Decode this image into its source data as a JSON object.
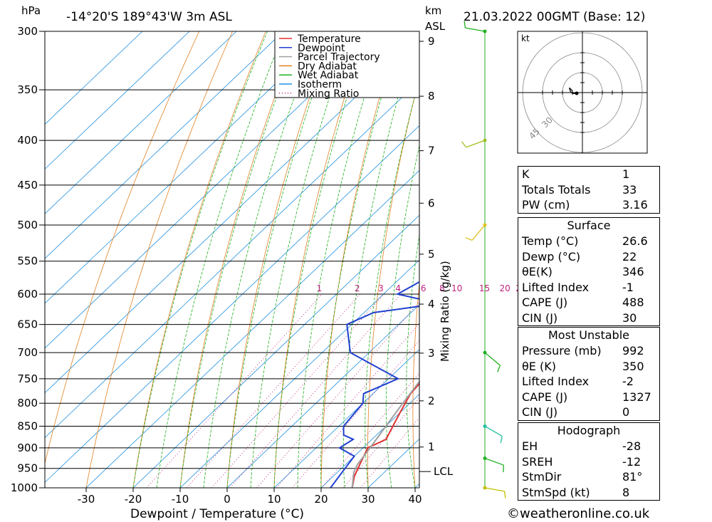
{
  "header": {
    "pressure_unit": "hPa",
    "location": "-14°20'S  189°43'W  3m  ASL",
    "km_unit": "km",
    "asl_unit": "ASL",
    "datetime": "21.03.2022  00GMT  (Base: 12)"
  },
  "axes": {
    "xlabel": "Dewpoint / Temperature (°C)",
    "mixing_label": "Mixing Ratio (g/kg)",
    "x_ticks": [
      "-30",
      "-20",
      "-10",
      "0",
      "10",
      "20",
      "30",
      "40"
    ],
    "pressure_ticks": [
      "300",
      "350",
      "400",
      "450",
      "500",
      "550",
      "600",
      "650",
      "700",
      "750",
      "800",
      "850",
      "900",
      "950",
      "1000"
    ],
    "km_ticks": [
      "9",
      "8",
      "7",
      "6",
      "5",
      "4",
      "3",
      "2",
      "1"
    ],
    "lcl_label": "LCL",
    "mixing_ticks": [
      "1",
      "2",
      "3",
      "4",
      "6",
      "8",
      "10",
      "15",
      "20",
      "25"
    ]
  },
  "legend": [
    {
      "label": "Temperature",
      "color": "#e03030"
    },
    {
      "label": "Dewpoint",
      "color": "#2040d0"
    },
    {
      "label": "Parcel Trajectory",
      "color": "#a0a0a0"
    },
    {
      "label": "Dry Adiabat",
      "color": "#e08020"
    },
    {
      "label": "Wet Adiabat",
      "color": "#20b020"
    },
    {
      "label": "Isotherm",
      "color": "#2090e0"
    },
    {
      "label": "Mixing Ratio",
      "color": "#c02080"
    }
  ],
  "chart_data": {
    "type": "line",
    "title": "",
    "xlabel": "Dewpoint / Temperature (°C)",
    "ylabel": "hPa",
    "xlim": [
      -40,
      40
    ],
    "ylim": [
      1000,
      300
    ],
    "series": [
      {
        "name": "Temperature",
        "points": [
          [
            1000,
            26.6
          ],
          [
            970,
            24.5
          ],
          [
            940,
            23
          ],
          [
            900,
            21
          ],
          [
            880,
            23
          ],
          [
            860,
            22
          ],
          [
            820,
            20
          ],
          [
            780,
            18
          ],
          [
            750,
            17.5
          ],
          [
            720,
            17.5
          ],
          [
            700,
            16.5
          ],
          [
            650,
            14
          ],
          [
            620,
            12.5
          ],
          [
            600,
            12
          ],
          [
            560,
            10.5
          ],
          [
            520,
            9.5
          ],
          [
            480,
            6
          ],
          [
            450,
            3
          ],
          [
            420,
            1
          ],
          [
            405,
            -1
          ],
          [
            390,
            -1.5
          ],
          [
            370,
            -2
          ]
        ]
      },
      {
        "name": "Dewpoint",
        "points": [
          [
            1000,
            22
          ],
          [
            960,
            21
          ],
          [
            920,
            20
          ],
          [
            900,
            15
          ],
          [
            880,
            16
          ],
          [
            870,
            13
          ],
          [
            850,
            11
          ],
          [
            800,
            10
          ],
          [
            780,
            8
          ],
          [
            750,
            12
          ],
          [
            700,
            -4
          ],
          [
            650,
            -11
          ],
          [
            630,
            -8
          ],
          [
            615,
            4
          ],
          [
            600,
            -7
          ],
          [
            580,
            -5
          ],
          [
            550,
            -6
          ],
          [
            530,
            -1
          ],
          [
            515,
            6
          ],
          [
            505,
            5
          ],
          [
            490,
            8
          ],
          [
            470,
            10
          ],
          [
            440,
            9
          ],
          [
            420,
            8
          ],
          [
            410,
            7
          ],
          [
            400,
            5
          ],
          [
            385,
            0
          ],
          [
            360,
            -5
          ],
          [
            345,
            -8
          ],
          [
            320,
            -7
          ],
          [
            300,
            0
          ]
        ]
      },
      {
        "name": "Parcel Trajectory",
        "points": [
          [
            1000,
            26.6
          ],
          [
            960,
            23.5
          ],
          [
            940,
            22.5
          ],
          [
            900,
            21.5
          ],
          [
            850,
            20
          ],
          [
            800,
            18.5
          ],
          [
            750,
            17
          ],
          [
            700,
            15
          ],
          [
            650,
            13
          ],
          [
            600,
            11
          ],
          [
            550,
            8.5
          ],
          [
            500,
            5.5
          ],
          [
            450,
            2
          ],
          [
            400,
            -2
          ],
          [
            370,
            -5
          ]
        ]
      }
    ]
  },
  "mixing_ratio_lines": [
    1,
    2,
    3,
    4,
    6,
    8,
    10,
    15,
    20,
    25
  ],
  "hodograph": {
    "unit": "kt",
    "rings": [
      "30",
      "45"
    ],
    "points": [
      [
        81,
        3
      ],
      [
        85,
        5
      ],
      [
        95,
        6
      ],
      [
        110,
        7
      ],
      [
        100,
        5
      ]
    ]
  },
  "wind_barbs": [
    {
      "pressure": 1000,
      "dir": 100,
      "speed": 10,
      "color": "#c0c000"
    },
    {
      "pressure": 925,
      "dir": 110,
      "speed": 10,
      "color": "#20b020"
    },
    {
      "pressure": 850,
      "dir": 120,
      "speed": 10,
      "color": "#20c0a0"
    },
    {
      "pressure": 700,
      "dir": 130,
      "speed": 10,
      "color": "#20b020"
    },
    {
      "pressure": 500,
      "dir": 220,
      "speed": 5,
      "color": "#e0c020"
    },
    {
      "pressure": 400,
      "dir": 250,
      "speed": 10,
      "color": "#a0c020"
    },
    {
      "pressure": 300,
      "dir": 280,
      "speed": 10,
      "color": "#20b020"
    }
  ],
  "indices": [
    {
      "label": "K",
      "value": "1"
    },
    {
      "label": "Totals Totals",
      "value": "33"
    },
    {
      "label": "PW (cm)",
      "value": "3.16"
    }
  ],
  "surface": {
    "title": "Surface",
    "rows": [
      {
        "label": "Temp (°C)",
        "value": "26.6"
      },
      {
        "label": "Dewp (°C)",
        "value": "22"
      },
      {
        "label": "θE(K)",
        "value": "346"
      },
      {
        "label": "Lifted Index",
        "value": "-1"
      },
      {
        "label": "CAPE (J)",
        "value": "488"
      },
      {
        "label": "CIN (J)",
        "value": "30"
      }
    ]
  },
  "most_unstable": {
    "title": "Most Unstable",
    "rows": [
      {
        "label": "Pressure (mb)",
        "value": "992"
      },
      {
        "label": "θE (K)",
        "value": "350"
      },
      {
        "label": "Lifted Index",
        "value": "-2"
      },
      {
        "label": "CAPE (J)",
        "value": "1327"
      },
      {
        "label": "CIN (J)",
        "value": "0"
      }
    ]
  },
  "hodograph_table": {
    "title": "Hodograph",
    "rows": [
      {
        "label": "EH",
        "value": "-28"
      },
      {
        "label": "SREH",
        "value": "-12"
      },
      {
        "label": "StmDir",
        "value": "81°"
      },
      {
        "label": "StmSpd (kt)",
        "value": "8"
      }
    ]
  },
  "footer": "©weatheronline.co.uk"
}
